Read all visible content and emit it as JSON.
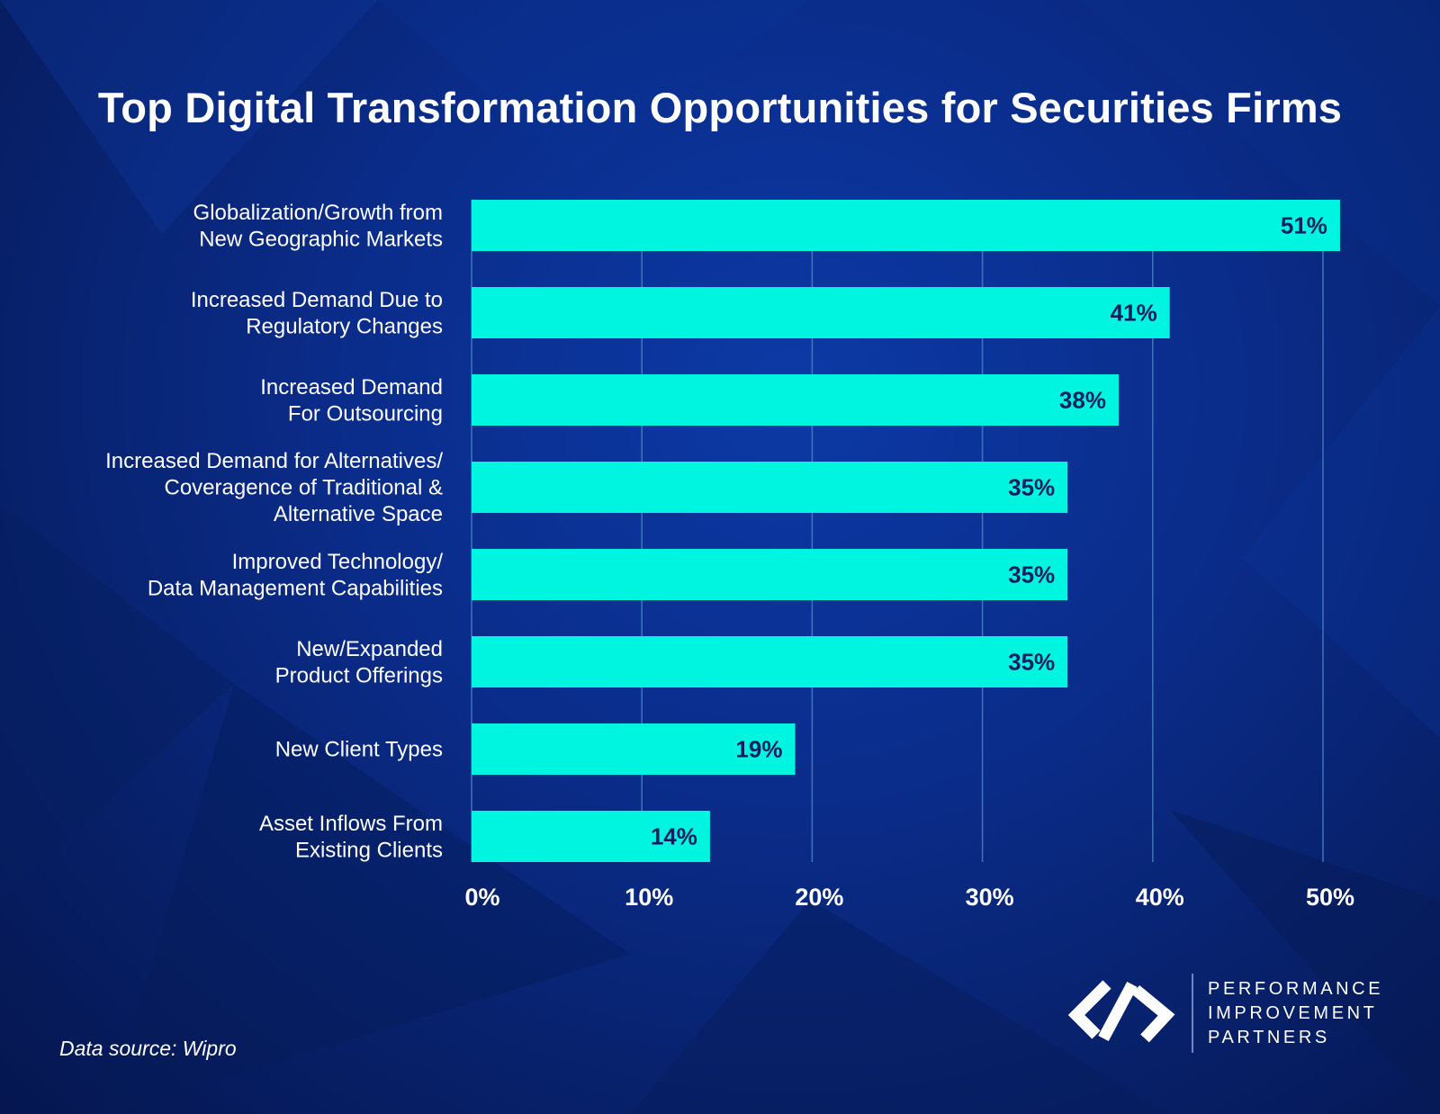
{
  "chart_data": {
    "type": "bar",
    "orientation": "horizontal",
    "title": "Top Digital Transformation Opportunities for Securities Firms",
    "categories": [
      [
        "Globalization/Growth from",
        "New Geographic Markets"
      ],
      [
        "Increased Demand Due to",
        "Regulatory Changes"
      ],
      [
        "Increased Demand",
        "For Outsourcing"
      ],
      [
        "Increased Demand for Alternatives/",
        "Coveragence of Traditional &",
        "Alternative Space"
      ],
      [
        "Improved Technology/",
        "Data Management Capabilities"
      ],
      [
        "New/Expanded",
        "Product Offerings"
      ],
      [
        "New Client Types"
      ],
      [
        "Asset Inflows From",
        "Existing Clients"
      ]
    ],
    "values": [
      51,
      41,
      38,
      35,
      35,
      35,
      19,
      14
    ],
    "value_labels": [
      "51%",
      "41%",
      "38%",
      "35%",
      "35%",
      "35%",
      "19%",
      "14%"
    ],
    "xlim": [
      0,
      50
    ],
    "xticks": [
      0,
      10,
      20,
      30,
      40,
      50
    ],
    "xtick_labels": [
      "0%",
      "10%",
      "20%",
      "30%",
      "40%",
      "50%"
    ],
    "xlabel": "",
    "ylabel": "",
    "grid": true,
    "bar_color": "#00F5E0",
    "value_label_color": "#0B2060",
    "gridline_color": "#4D86C9"
  },
  "footer": {
    "source": "Data source: Wipro"
  },
  "brand": {
    "logo_icon": "pip-chain-logo-icon",
    "lines": [
      "PERFORMANCE",
      "IMPROVEMENT",
      "PARTNERS"
    ]
  }
}
